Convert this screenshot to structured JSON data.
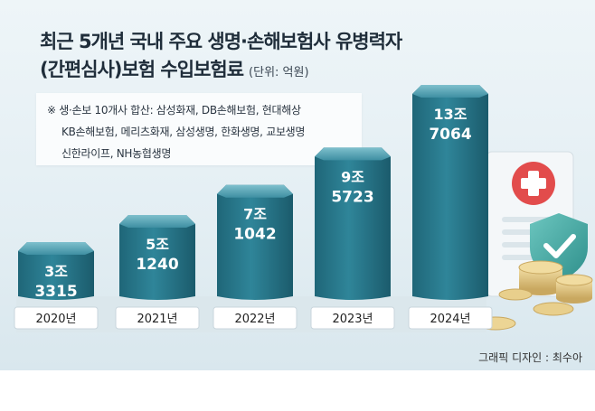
{
  "title_line1": "최근 5개년 국내 주요 생명·손해보험사 유병력자",
  "title_line2": "(간편심사)보험 수입보험료",
  "unit": "(단위: 억원)",
  "note": [
    "※ 생·손보 10개사 합산: 삼성화재, DB손해보험, 현대해상",
    "KB손해보험, 메리츠화재, 삼성생명, 한화생명, 교보생명",
    "신한라이프, NH농협생명"
  ],
  "credit": "그래픽 디자인 : 최수아",
  "colors": {
    "bar": "#2b7a8f",
    "bar_top": "#5aa3b3",
    "label": "#ffffff",
    "pill": "#ffffff"
  },
  "chart_data": {
    "type": "bar",
    "categories": [
      "2020년",
      "2021년",
      "2022년",
      "2023년",
      "2024년"
    ],
    "values": [
      33315,
      51240,
      71042,
      95723,
      137064
    ],
    "value_labels": [
      [
        "3조",
        "3315"
      ],
      [
        "5조",
        "1240"
      ],
      [
        "7조",
        "1042"
      ],
      [
        "9조",
        "5723"
      ],
      [
        "13조",
        "7064"
      ]
    ],
    "ylabel": "",
    "ylim": [
      0,
      140000
    ],
    "grid": false,
    "legend": "none"
  }
}
